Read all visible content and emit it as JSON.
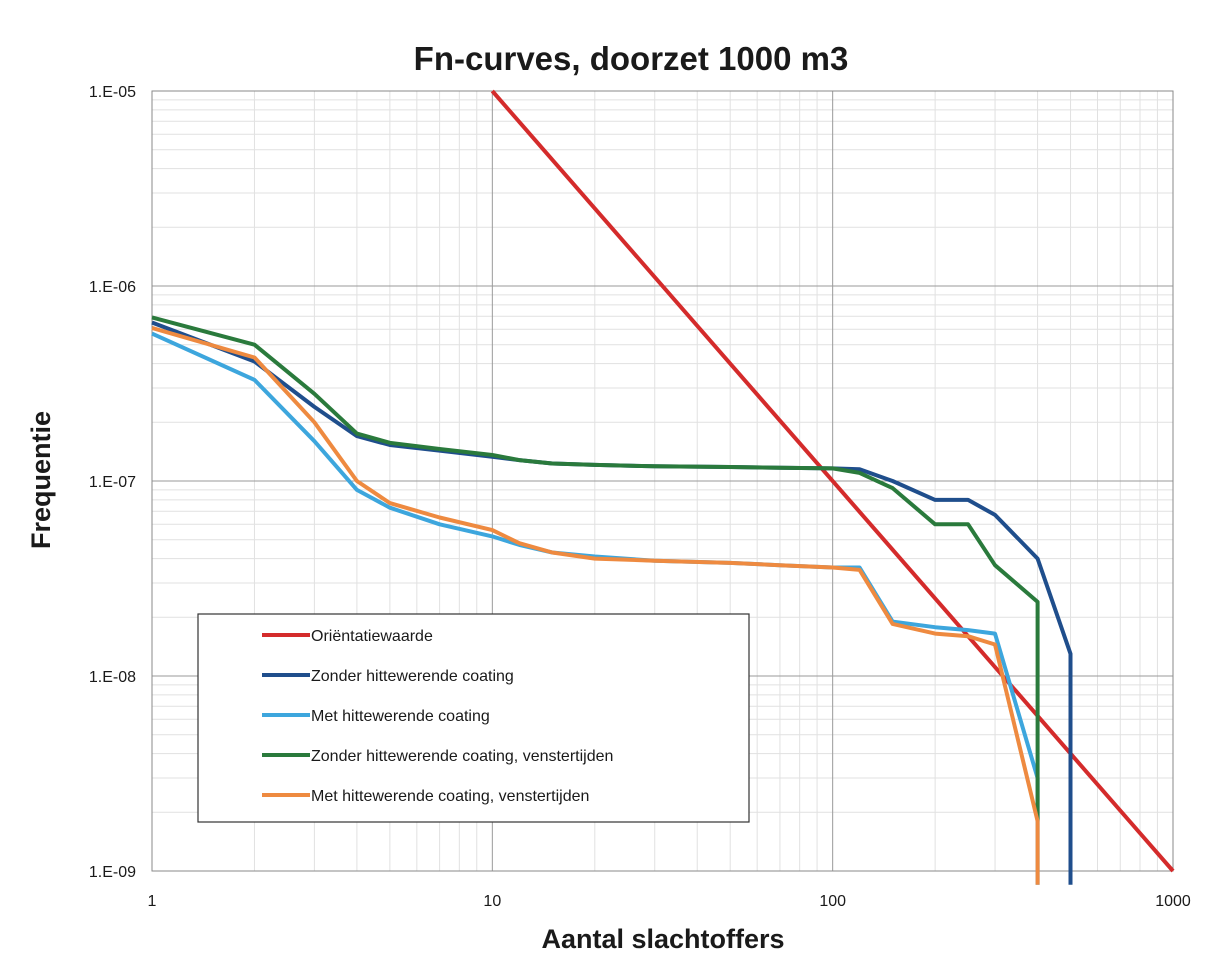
{
  "chart_data": {
    "type": "line",
    "title": "Fn-curves, doorzet 1000 m3",
    "xlabel": "Aantal slachtoffers",
    "ylabel": "Frequentie",
    "x_scale": "log",
    "y_scale": "log",
    "xlim": [
      1,
      1000
    ],
    "ylim": [
      1e-09,
      1e-05
    ],
    "x_ticks": [
      "1",
      "10",
      "100",
      "1000"
    ],
    "y_ticks": [
      "1.E-05",
      "1.E-06",
      "1.E-07",
      "1.E-08",
      "1.E-09"
    ],
    "grid": true,
    "legend_position": "lower-left",
    "series": [
      {
        "name": "Oriëntatiewaarde",
        "color": "#d42b2b",
        "x": [
          10,
          1000
        ],
        "y": [
          1e-05,
          1e-09
        ]
      },
      {
        "name": "Zonder hittewerende coating",
        "color": "#1f4e8c",
        "x": [
          1,
          2,
          3,
          4,
          5,
          7,
          10,
          12,
          15,
          20,
          30,
          50,
          70,
          100,
          120,
          150,
          200,
          250,
          300,
          400,
          500,
          500
        ],
        "y": [
          6.5e-07,
          4.1e-07,
          2.4e-07,
          1.7e-07,
          1.53e-07,
          1.43e-07,
          1.33e-07,
          1.28e-07,
          1.23e-07,
          1.21e-07,
          1.19e-07,
          1.18e-07,
          1.17e-07,
          1.16e-07,
          1.15e-07,
          1e-07,
          8e-08,
          8e-08,
          6.7e-08,
          4e-08,
          1.3e-08,
          8.5e-10
        ]
      },
      {
        "name": "Met hittewerende coating",
        "color": "#3da6dd",
        "x": [
          1,
          2,
          3,
          4,
          5,
          7,
          10,
          12,
          15,
          20,
          30,
          50,
          70,
          100,
          120,
          150,
          200,
          250,
          300,
          400,
          400
        ],
        "y": [
          5.7e-07,
          3.3e-07,
          1.6e-07,
          9e-08,
          7.3e-08,
          6e-08,
          5.2e-08,
          4.7e-08,
          4.3e-08,
          4.1e-08,
          3.9e-08,
          3.8e-08,
          3.7e-08,
          3.6e-08,
          3.6e-08,
          1.9e-08,
          1.78e-08,
          1.72e-08,
          1.65e-08,
          3e-09,
          8.5e-10
        ]
      },
      {
        "name": "Zonder hittewerende coating, venstertijden",
        "color": "#2a7a3c",
        "x": [
          1,
          2,
          3,
          4,
          5,
          7,
          10,
          12,
          15,
          20,
          30,
          50,
          70,
          100,
          120,
          150,
          200,
          250,
          300,
          400,
          400
        ],
        "y": [
          6.9e-07,
          5e-07,
          2.8e-07,
          1.75e-07,
          1.57e-07,
          1.46e-07,
          1.36e-07,
          1.28e-07,
          1.23e-07,
          1.21e-07,
          1.19e-07,
          1.18e-07,
          1.17e-07,
          1.16e-07,
          1.1e-07,
          9.2e-08,
          6e-08,
          6e-08,
          3.7e-08,
          2.4e-08,
          1.8e-09
        ]
      },
      {
        "name": "Met hittewerende coating, venstertijden",
        "color": "#ee8a40",
        "x": [
          1,
          2,
          3,
          4,
          5,
          7,
          10,
          12,
          15,
          20,
          30,
          50,
          70,
          100,
          120,
          150,
          200,
          250,
          300,
          400,
          400
        ],
        "y": [
          6.1e-07,
          4.3e-07,
          2e-07,
          1e-07,
          7.7e-08,
          6.5e-08,
          5.6e-08,
          4.8e-08,
          4.3e-08,
          4e-08,
          3.9e-08,
          3.8e-08,
          3.7e-08,
          3.6e-08,
          3.5e-08,
          1.85e-08,
          1.65e-08,
          1.6e-08,
          1.45e-08,
          1.8e-09,
          8.5e-10
        ]
      }
    ]
  }
}
